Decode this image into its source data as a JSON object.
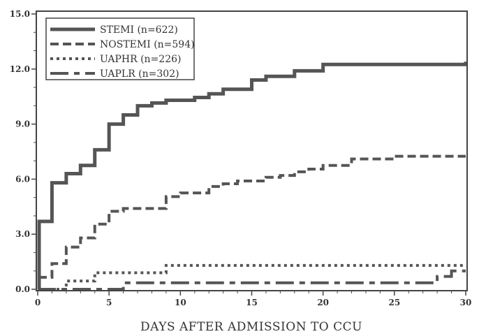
{
  "chart_data": {
    "type": "line",
    "title": "",
    "xlabel": "DAYS AFTER ADMISSION TO CCU",
    "ylabel": "",
    "xlim": [
      0,
      30
    ],
    "ylim": [
      0,
      15
    ],
    "x_ticks": [
      0,
      5,
      10,
      15,
      20,
      25,
      30
    ],
    "x_tick_labels": [
      "0",
      "5",
      "10",
      "15",
      "20",
      "25",
      "30"
    ],
    "y_ticks": [
      0,
      3,
      6,
      9,
      12,
      15
    ],
    "y_tick_labels": [
      "0.0",
      "3.0",
      "6.0",
      "9.0",
      "12.0",
      "15.0"
    ],
    "step": true,
    "grid": false,
    "legend_position": "top-left",
    "series": [
      {
        "name": "STEMI (n=622)",
        "style": "solid",
        "color": "#555555",
        "x": [
          0,
          0.1,
          1,
          2,
          3,
          4,
          5,
          6,
          7,
          8,
          9,
          11,
          12,
          13,
          15,
          16,
          18,
          20,
          30
        ],
        "y": [
          0,
          3.7,
          5.8,
          6.3,
          6.75,
          7.6,
          9.0,
          9.5,
          10.0,
          10.15,
          10.3,
          10.45,
          10.65,
          10.9,
          11.4,
          11.6,
          11.9,
          12.25,
          12.4
        ]
      },
      {
        "name": "NOSTEMI (n=594)",
        "style": "dashed",
        "color": "#555555",
        "x": [
          0,
          0.1,
          1,
          2,
          3,
          4,
          5,
          6,
          9,
          10,
          12,
          13,
          14,
          16,
          17,
          18,
          19,
          20,
          22,
          25,
          30
        ],
        "y": [
          0,
          0.65,
          1.4,
          2.3,
          2.8,
          3.55,
          4.25,
          4.4,
          5.05,
          5.25,
          5.6,
          5.75,
          5.9,
          6.1,
          6.2,
          6.4,
          6.55,
          6.75,
          7.1,
          7.25,
          7.25
        ]
      },
      {
        "name": "UAPHR (n=226)",
        "style": "dotted",
        "color": "#555555",
        "x": [
          0,
          2,
          4,
          9,
          30
        ],
        "y": [
          0,
          0.45,
          0.9,
          1.3,
          1.3
        ]
      },
      {
        "name": "UAPLR (n=302)",
        "style": "dashdot",
        "color": "#555555",
        "x": [
          0,
          2,
          6,
          24,
          28,
          29,
          30
        ],
        "y": [
          0,
          0,
          0.35,
          0.35,
          0.7,
          1.0,
          1.0
        ]
      }
    ]
  }
}
